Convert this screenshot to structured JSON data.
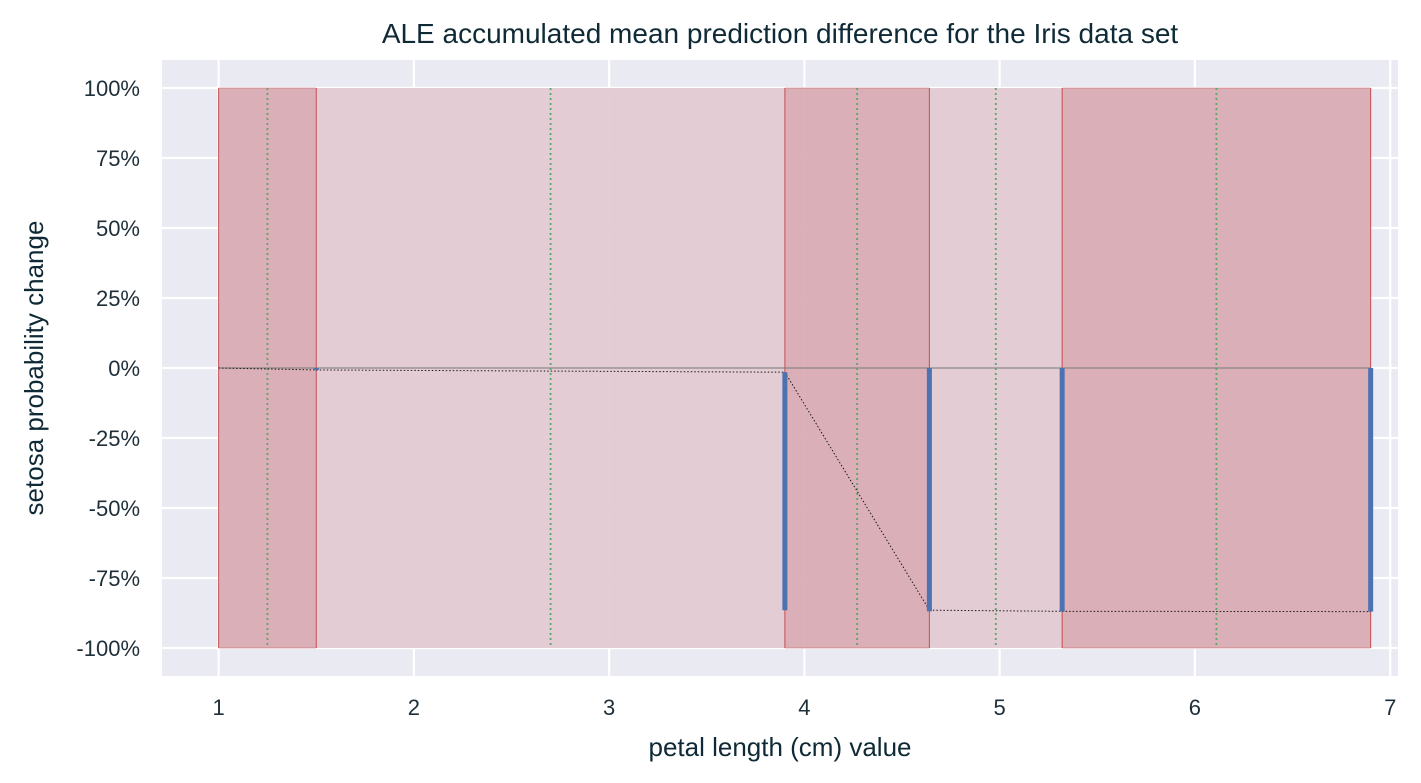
{
  "chart_data": {
    "type": "bar",
    "title": "ALE accumulated mean prediction difference for the Iris data set",
    "xlabel": "petal length (cm) value",
    "ylabel": "setosa probability change",
    "xlim": [
      0.71,
      7.04
    ],
    "ylim": [
      -110,
      110
    ],
    "x_ticks": [
      1,
      2,
      3,
      4,
      5,
      6,
      7
    ],
    "x_tick_labels": [
      "1",
      "2",
      "3",
      "4",
      "5",
      "6",
      "7"
    ],
    "y_ticks": [
      100,
      75,
      50,
      25,
      0,
      -25,
      -50,
      -75,
      -100
    ],
    "y_tick_labels": [
      "100%",
      "75%",
      "50%",
      "25%",
      "0%",
      "-25%",
      "-50%",
      "-75%",
      "-100%"
    ],
    "grid": true,
    "bins": [
      {
        "x_start": 1.0,
        "x_end": 1.5,
        "shade": "dark",
        "center": 1.25,
        "y_start": 0,
        "y_end": -0.7
      },
      {
        "x_start": 1.5,
        "x_end": 3.9,
        "shade": "light",
        "center": 2.7,
        "y_start": -0.7,
        "y_end": -1.5
      },
      {
        "x_start": 3.9,
        "x_end": 4.64,
        "shade": "dark",
        "center": 4.27,
        "y_start": -1.5,
        "y_end": -86.5
      },
      {
        "x_start": 4.64,
        "x_end": 5.32,
        "shade": "light",
        "center": 4.98,
        "y_start": -86.5,
        "y_end": -86.9
      },
      {
        "x_start": 5.32,
        "x_end": 6.9,
        "shade": "dark",
        "center": 6.11,
        "y_start": -86.9,
        "y_end": -87.0
      }
    ],
    "steps": [
      {
        "x": 1.5,
        "y_from": 0,
        "y_to": -0.7
      },
      {
        "x": 3.9,
        "y_from": -1.5,
        "y_to": -86.5
      },
      {
        "x": 4.64,
        "y_from": 0,
        "y_to": -86.9
      },
      {
        "x": 5.32,
        "y_from": 0,
        "y_to": -87.0
      },
      {
        "x": 6.9,
        "y_from": 0,
        "y_to": -87.0
      }
    ],
    "colors": {
      "plot_bg": "#eaeaf2",
      "grid": "#ffffff",
      "bin_dark": "#d9a9b2",
      "bin_light": "#e2c9d0",
      "bin_edge": "#c44e52",
      "step": "#4c72b0",
      "center_line": "#55a868",
      "connector": "#1a1a1a",
      "zero_line": "#777777"
    }
  }
}
